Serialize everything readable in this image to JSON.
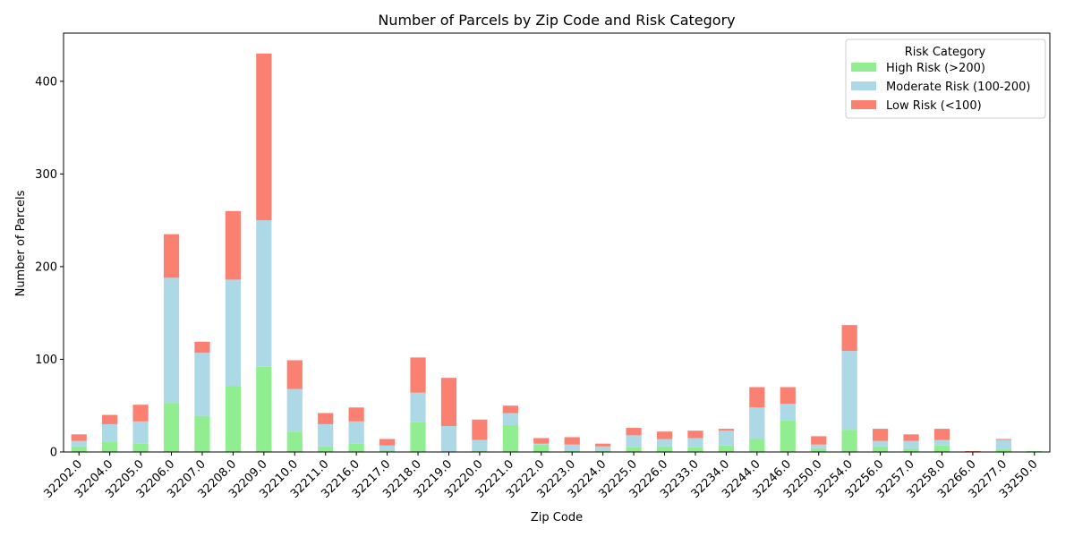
{
  "chart_data": {
    "type": "bar",
    "stacked": true,
    "title": "Number of Parcels by Zip Code and Risk Category",
    "xlabel": "Zip Code",
    "ylabel": "Number of Parcels",
    "ylim": [
      0,
      452
    ],
    "yticks": [
      0,
      100,
      200,
      300,
      400
    ],
    "categories": [
      "32202.0",
      "32204.0",
      "32205.0",
      "32206.0",
      "32207.0",
      "32208.0",
      "32209.0",
      "32210.0",
      "32211.0",
      "32216.0",
      "32217.0",
      "32218.0",
      "32219.0",
      "32220.0",
      "32221.0",
      "32222.0",
      "32223.0",
      "32224.0",
      "32225.0",
      "32226.0",
      "32233.0",
      "32234.0",
      "32244.0",
      "32246.0",
      "32250.0",
      "32254.0",
      "32256.0",
      "32257.0",
      "32258.0",
      "32266.0",
      "32277.0",
      "33250.0"
    ],
    "series": [
      {
        "name": "High Risk (>200)",
        "color": "#90ee90",
        "values": [
          6,
          11,
          9,
          53,
          39,
          71,
          92,
          22,
          6,
          9,
          2,
          32,
          0,
          1,
          29,
          8,
          1,
          1,
          5,
          6,
          5,
          7,
          14,
          34,
          4,
          24,
          6,
          4,
          7,
          0,
          3,
          1
        ]
      },
      {
        "name": "Moderate Risk (100-200)",
        "color": "#add8e6",
        "values": [
          6,
          19,
          24,
          135,
          68,
          115,
          158,
          46,
          24,
          24,
          5,
          32,
          28,
          12,
          13,
          1,
          7,
          5,
          13,
          8,
          10,
          16,
          34,
          18,
          4,
          85,
          6,
          8,
          6,
          0,
          10,
          0
        ]
      },
      {
        "name": "Low Risk (<100)",
        "color": "#fa8072",
        "values": [
          7,
          10,
          18,
          47,
          12,
          74,
          180,
          31,
          12,
          15,
          7,
          38,
          52,
          22,
          8,
          6,
          8,
          3,
          8,
          8,
          8,
          2,
          22,
          18,
          9,
          28,
          13,
          7,
          12,
          1,
          1,
          0
        ]
      }
    ],
    "legend": {
      "title": "Risk Category",
      "placement": "top-right"
    }
  }
}
